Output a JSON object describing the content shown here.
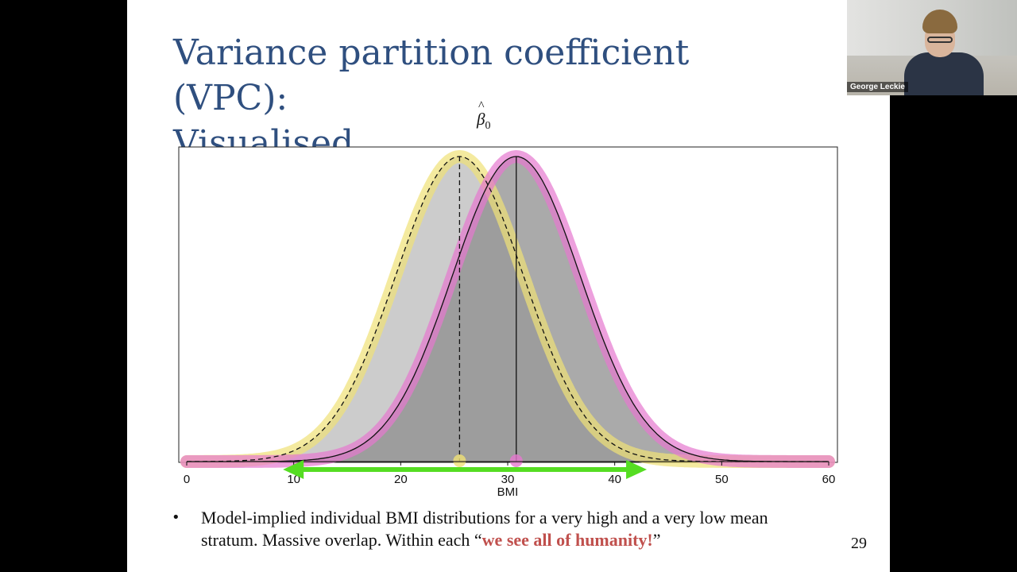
{
  "slide": {
    "title_line1": "Variance partition coefficient (VPC):",
    "title_line2": "Visualised",
    "beta_symbol": "β",
    "beta_hat": "^",
    "beta_subscript": "0",
    "bullet_text": "Model-implied individual BMI distributions for a very high and a very low mean stratum. Massive overlap. Within each “",
    "bullet_emphasis": "we see all of humanity!",
    "bullet_end": "”",
    "page_number": "29"
  },
  "webcam": {
    "name": "George Leckie"
  },
  "chart_data": {
    "type": "area",
    "xlabel": "BMI",
    "ylabel": "",
    "xlim": [
      0,
      60
    ],
    "xticks": [
      0,
      10,
      20,
      30,
      40,
      50,
      60
    ],
    "grid": false,
    "series": [
      {
        "mean": 25.5,
        "sd": 6,
        "line": "dashed",
        "fill": "#c9c9c9",
        "highlight": "#f0e176"
      },
      {
        "mean": 30.8,
        "sd": 6,
        "line": "solid",
        "fill": "#8e8e8e",
        "highlight": "#e678cf"
      }
    ],
    "annotation_arrow": {
      "x_start": 9,
      "x_end": 43,
      "color": "#55dd22"
    }
  }
}
